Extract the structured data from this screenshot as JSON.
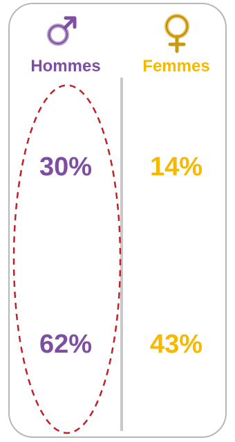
{
  "colors": {
    "men": "#7d4ea1",
    "women": "#f7b900",
    "border": "#b7b7b7",
    "divider": "#c8c8c8",
    "highlight": "#c0202a"
  },
  "icons": {
    "men": "male-symbol-icon",
    "women": "female-symbol-icon"
  },
  "columns": {
    "men": {
      "label": "Hommes",
      "values": [
        "30%",
        "62%"
      ]
    },
    "women": {
      "label": "Femmes",
      "values": [
        "14%",
        "43%"
      ]
    }
  }
}
